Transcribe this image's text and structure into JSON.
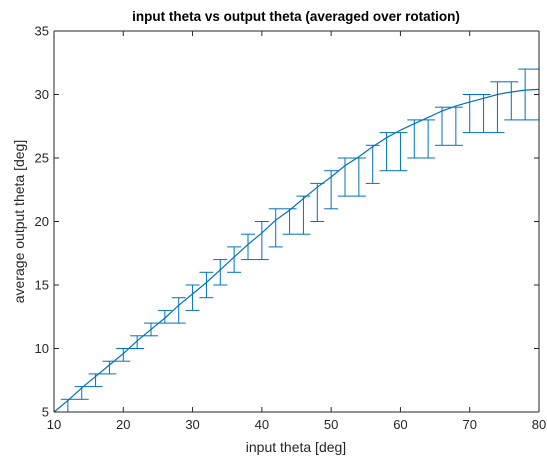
{
  "chart_data": {
    "type": "line",
    "title": "input theta vs output theta (averaged over rotation)",
    "xlabel": "input theta [deg]",
    "ylabel": "average output theta [deg]",
    "xlim": [
      10,
      80
    ],
    "ylim": [
      5,
      35
    ],
    "xticks": [
      "10",
      "20",
      "30",
      "40",
      "50",
      "60",
      "70",
      "80"
    ],
    "yticks": [
      "5",
      "10",
      "15",
      "20",
      "25",
      "30",
      "35"
    ],
    "grid": false,
    "series_color": "#0072BD",
    "axis_color": "#262626",
    "series": [
      {
        "x": [
          10,
          12,
          14,
          16,
          18,
          20,
          22,
          24,
          26,
          28,
          30,
          32,
          34,
          36,
          38,
          40,
          42,
          44,
          46,
          48,
          50,
          52,
          54,
          56,
          58,
          60,
          62,
          64,
          66,
          68,
          70,
          72,
          74,
          76,
          78,
          80
        ],
        "y": [
          5.0,
          5.9,
          6.9,
          7.8,
          8.7,
          9.6,
          10.6,
          11.5,
          12.4,
          13.4,
          14.3,
          15.2,
          16.2,
          17.2,
          18.2,
          19.1,
          20.1,
          20.9,
          21.8,
          22.7,
          23.5,
          24.4,
          25.1,
          25.9,
          26.6,
          27.2,
          27.7,
          28.2,
          28.7,
          29.1,
          29.4,
          29.7,
          30.0,
          30.2,
          30.35,
          30.4
        ],
        "err_low": [
          5,
          5,
          6,
          7,
          8,
          9,
          10,
          11,
          12,
          12,
          13,
          14,
          15,
          16,
          17,
          17,
          18,
          19,
          19,
          20,
          21,
          22,
          22,
          23,
          24,
          24,
          25,
          25,
          26,
          26,
          27,
          27,
          27,
          28,
          28,
          28
        ],
        "err_high": [
          5,
          6,
          7,
          8,
          9,
          10,
          11,
          12,
          13,
          14,
          15,
          16,
          17,
          18,
          19,
          20,
          21,
          21,
          22,
          23,
          24,
          25,
          25,
          26,
          27,
          27,
          28,
          28,
          29,
          29,
          30,
          30,
          31,
          31,
          32,
          32
        ]
      }
    ]
  }
}
